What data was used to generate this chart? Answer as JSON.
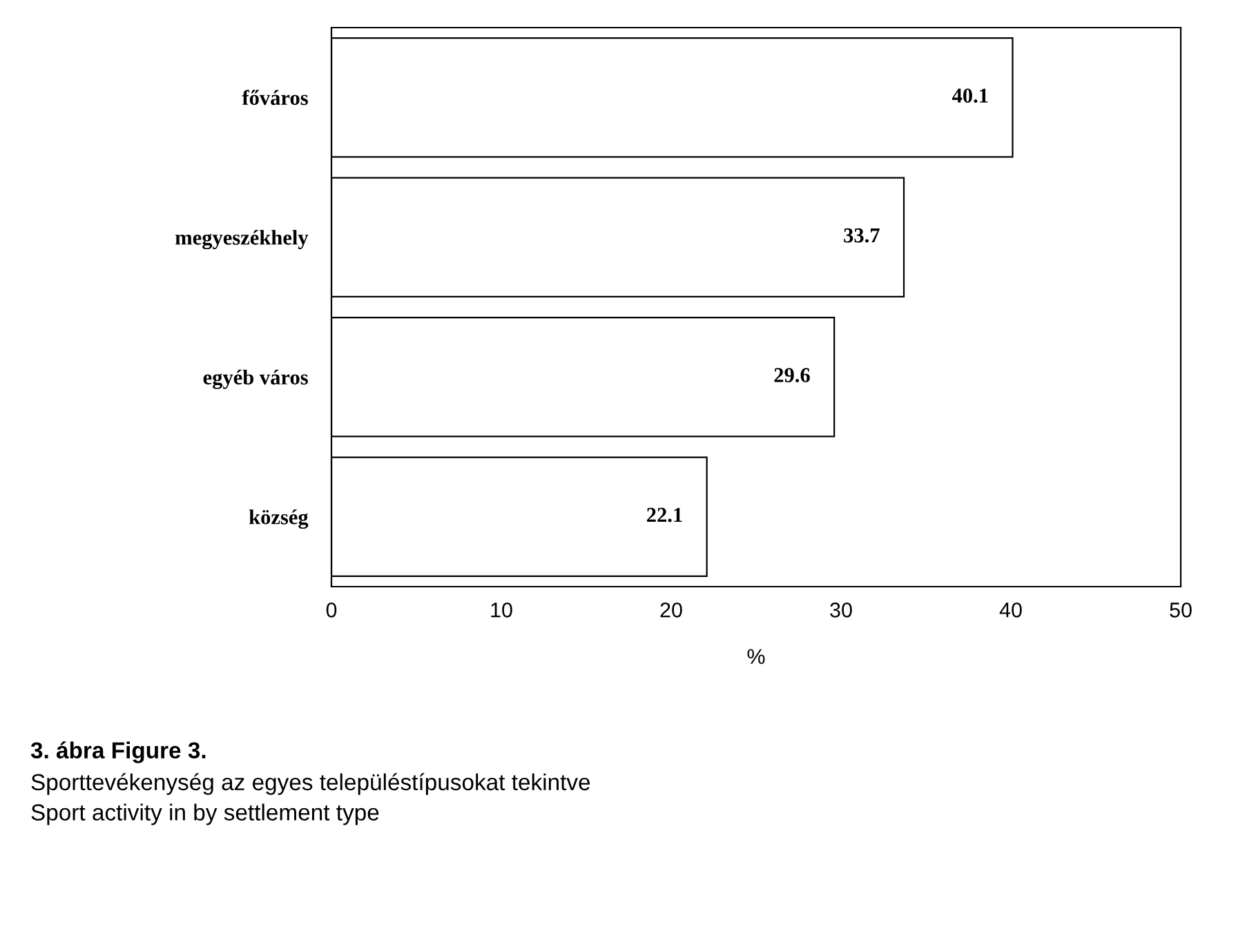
{
  "chart_data": {
    "type": "bar",
    "orientation": "horizontal",
    "categories": [
      "főváros",
      "megyeszékhely",
      "egyéb város",
      "község"
    ],
    "values": [
      40.1,
      33.7,
      29.6,
      22.1
    ],
    "color": "#ffffff",
    "data_labels": true,
    "xlim": [
      0,
      50
    ],
    "xticks": [
      0,
      10,
      20,
      30,
      40,
      50
    ],
    "xlabel": "%",
    "grid": false,
    "legend": false,
    "annotations": [
      "3. ábra Figure 3.",
      "Sporttevékenység az egyes településtípusokat tekintve",
      "Sport activity in by settlement type"
    ]
  }
}
